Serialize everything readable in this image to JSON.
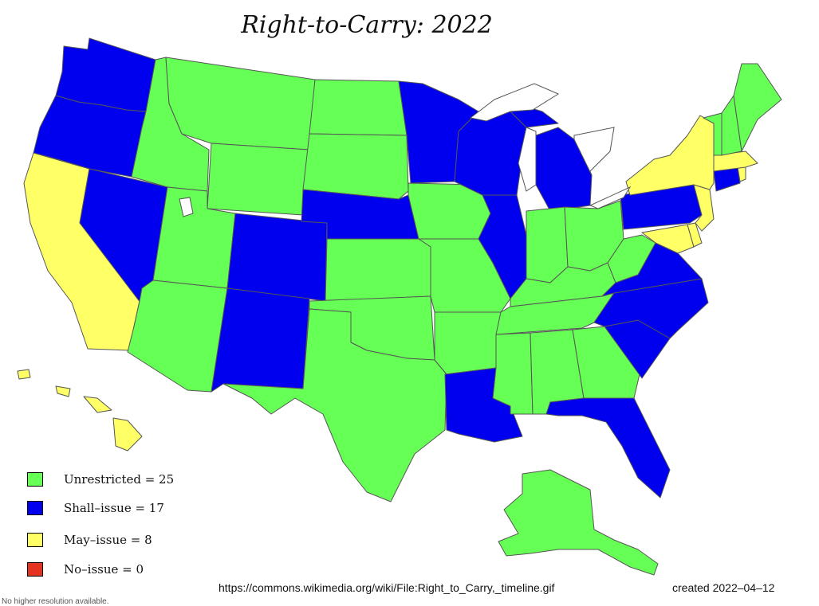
{
  "title": "Right-to-Carry: 2022",
  "colors": {
    "unrestricted": "#66ff55",
    "shall_issue": "#0000ee",
    "may_issue": "#ffff66",
    "no_issue": "#e53322",
    "water": "#ffffff",
    "border": "#555555"
  },
  "legend": [
    {
      "label": "Unrestricted = 25",
      "category": "unrestricted"
    },
    {
      "label": "Shall–issue = 17",
      "category": "shall_issue"
    },
    {
      "label": "May–issue = 8",
      "category": "may_issue"
    },
    {
      "label": "No–issue = 0",
      "category": "no_issue"
    }
  ],
  "source_url": "https://commons.wikimedia.org/wiki/File:Right_to_Carry,_timeline.gif",
  "created": "created 2022–04–12",
  "footnote": "No higher resolution available."
}
